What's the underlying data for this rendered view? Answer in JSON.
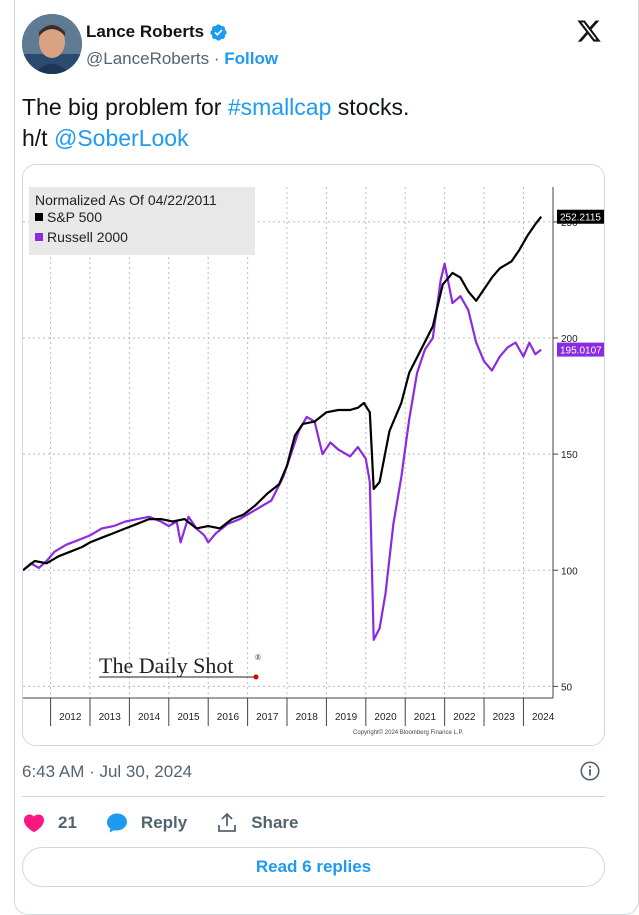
{
  "author": {
    "display_name": "Lance Roberts",
    "handle": "@LanceRoberts",
    "separator": "·",
    "follow_label": "Follow"
  },
  "tweet": {
    "text_part1": "The big problem for ",
    "hashtag": "#smallcap",
    "text_part2": " stocks.",
    "line2_prefix": "h/t ",
    "mention": "@SoberLook"
  },
  "timestamp": "6:43 AM · Jul 30, 2024",
  "actions": {
    "like_count": "21",
    "reply_label": "Reply",
    "share_label": "Share"
  },
  "read_replies_label": "Read 6 replies",
  "icons": {
    "verified": "verified-badge-icon",
    "logo": "x-logo-icon",
    "info": "info-icon",
    "like": "heart-icon",
    "reply": "speech-bubble-icon",
    "share": "share-upload-icon"
  },
  "colors": {
    "accent": "#1d9bf0",
    "like": "#f91880",
    "sp500_line": "#000000",
    "russell_line": "#8a2be2",
    "legend_bg": "#e8e8e8"
  },
  "chart_data": {
    "type": "line",
    "legend_title": "Normalized As Of 04/22/2011",
    "series": [
      {
        "name": "S&P 500",
        "last_value_label": "252.2115",
        "points": [
          [
            2011.3,
            100
          ],
          [
            2011.6,
            104
          ],
          [
            2011.9,
            103
          ],
          [
            2012.2,
            106
          ],
          [
            2012.5,
            108
          ],
          [
            2012.8,
            110
          ],
          [
            2013.0,
            112
          ],
          [
            2013.3,
            114
          ],
          [
            2013.6,
            116
          ],
          [
            2013.9,
            118
          ],
          [
            2014.2,
            120
          ],
          [
            2014.5,
            122
          ],
          [
            2014.8,
            122
          ],
          [
            2015.1,
            121
          ],
          [
            2015.4,
            122
          ],
          [
            2015.7,
            118
          ],
          [
            2016.0,
            119
          ],
          [
            2016.3,
            118
          ],
          [
            2016.6,
            122
          ],
          [
            2016.9,
            124
          ],
          [
            2017.2,
            128
          ],
          [
            2017.5,
            133
          ],
          [
            2017.8,
            137
          ],
          [
            2018.0,
            145
          ],
          [
            2018.2,
            158
          ],
          [
            2018.4,
            163
          ],
          [
            2018.7,
            164
          ],
          [
            2019.0,
            168
          ],
          [
            2019.3,
            169
          ],
          [
            2019.6,
            169
          ],
          [
            2019.8,
            170
          ],
          [
            2019.95,
            172
          ],
          [
            2020.1,
            168
          ],
          [
            2020.2,
            135
          ],
          [
            2020.35,
            138
          ],
          [
            2020.6,
            160
          ],
          [
            2020.9,
            172
          ],
          [
            2021.1,
            185
          ],
          [
            2021.4,
            195
          ],
          [
            2021.7,
            205
          ],
          [
            2021.95,
            223
          ],
          [
            2022.2,
            228
          ],
          [
            2022.4,
            226
          ],
          [
            2022.6,
            220
          ],
          [
            2022.8,
            216
          ],
          [
            2023.0,
            221
          ],
          [
            2023.2,
            226
          ],
          [
            2023.4,
            230
          ],
          [
            2023.7,
            233
          ],
          [
            2023.9,
            238
          ],
          [
            2024.1,
            244
          ],
          [
            2024.3,
            249
          ],
          [
            2024.45,
            252.2
          ]
        ]
      },
      {
        "name": "Russell 2000",
        "last_value_label": "195.0107",
        "points": [
          [
            2011.3,
            100
          ],
          [
            2011.5,
            103
          ],
          [
            2011.7,
            101
          ],
          [
            2011.9,
            104
          ],
          [
            2012.1,
            108
          ],
          [
            2012.4,
            111
          ],
          [
            2012.7,
            113
          ],
          [
            2013.0,
            115
          ],
          [
            2013.3,
            118
          ],
          [
            2013.6,
            119
          ],
          [
            2013.9,
            121
          ],
          [
            2014.2,
            122
          ],
          [
            2014.5,
            123
          ],
          [
            2014.8,
            121
          ],
          [
            2015.0,
            119
          ],
          [
            2015.2,
            121
          ],
          [
            2015.3,
            112
          ],
          [
            2015.5,
            123
          ],
          [
            2015.7,
            118
          ],
          [
            2015.9,
            115
          ],
          [
            2016.0,
            112
          ],
          [
            2016.2,
            116
          ],
          [
            2016.5,
            120
          ],
          [
            2016.8,
            122
          ],
          [
            2017.0,
            124
          ],
          [
            2017.3,
            127
          ],
          [
            2017.6,
            130
          ],
          [
            2017.9,
            140
          ],
          [
            2018.1,
            150
          ],
          [
            2018.3,
            160
          ],
          [
            2018.5,
            166
          ],
          [
            2018.7,
            164
          ],
          [
            2018.9,
            150
          ],
          [
            2019.1,
            155
          ],
          [
            2019.3,
            152
          ],
          [
            2019.6,
            149
          ],
          [
            2019.8,
            153
          ],
          [
            2020.0,
            148
          ],
          [
            2020.1,
            138
          ],
          [
            2020.2,
            70
          ],
          [
            2020.35,
            75
          ],
          [
            2020.5,
            90
          ],
          [
            2020.7,
            120
          ],
          [
            2020.9,
            140
          ],
          [
            2021.1,
            165
          ],
          [
            2021.3,
            185
          ],
          [
            2021.5,
            195
          ],
          [
            2021.7,
            200
          ],
          [
            2021.9,
            225
          ],
          [
            2022.0,
            232
          ],
          [
            2022.2,
            215
          ],
          [
            2022.4,
            218
          ],
          [
            2022.6,
            212
          ],
          [
            2022.8,
            198
          ],
          [
            2023.0,
            190
          ],
          [
            2023.2,
            186
          ],
          [
            2023.4,
            192
          ],
          [
            2023.6,
            196
          ],
          [
            2023.8,
            198
          ],
          [
            2024.0,
            192
          ],
          [
            2024.15,
            198
          ],
          [
            2024.3,
            193
          ],
          [
            2024.45,
            195.0
          ]
        ]
      }
    ],
    "x_tick_labels": [
      "2012",
      "2013",
      "2014",
      "2015",
      "2016",
      "2017",
      "2018",
      "2019",
      "2020",
      "2021",
      "2022",
      "2023",
      "2024"
    ],
    "y_tick_labels": [
      "50",
      "100",
      "150",
      "200",
      "250"
    ],
    "xlim": [
      2011.3,
      2024.75
    ],
    "ylim": [
      45,
      265
    ],
    "watermark": "The Daily Shot",
    "copyright": "Copyright© 2024 Bloomberg Finance L.P.",
    "grid": "vertical dashed",
    "legend_placement": "top-left"
  }
}
